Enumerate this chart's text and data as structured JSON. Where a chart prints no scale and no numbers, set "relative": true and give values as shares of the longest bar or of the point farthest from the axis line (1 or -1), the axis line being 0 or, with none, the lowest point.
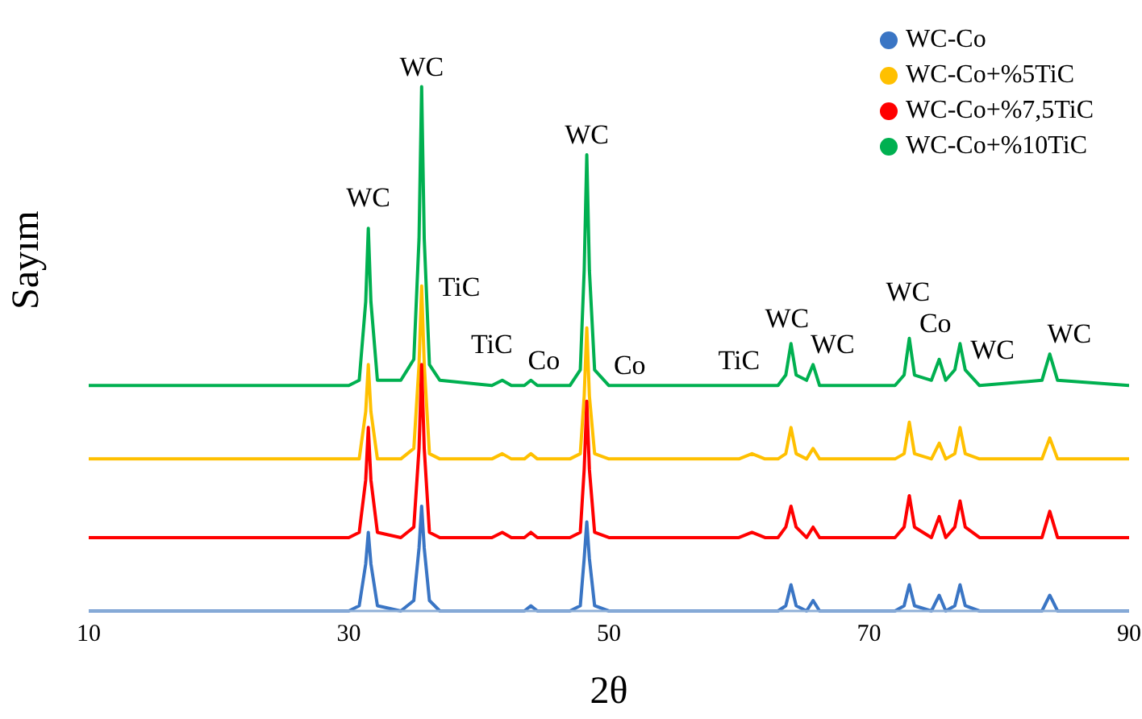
{
  "chart_data": {
    "type": "line",
    "relative": true,
    "xlabel": "2θ",
    "ylabel": "Sayım",
    "xlim": [
      10,
      90
    ],
    "xticks": [
      10,
      30,
      50,
      70,
      90
    ],
    "legend": "top right",
    "marker": "none",
    "x": [
      10,
      30,
      30.8,
      31.3,
      31.5,
      31.7,
      32.2,
      34,
      35,
      35.4,
      35.6,
      35.8,
      36.2,
      37,
      41,
      41.8,
      42.5,
      43.5,
      44,
      44.5,
      47,
      47.8,
      48.1,
      48.3,
      48.5,
      48.9,
      50,
      51.5,
      60,
      61,
      62,
      63,
      63.6,
      64,
      64.4,
      65.2,
      65.7,
      66.2,
      72,
      72.7,
      73.1,
      73.5,
      74.8,
      75.4,
      75.9,
      76.6,
      77,
      77.4,
      78.5,
      83.3,
      83.9,
      84.5,
      90
    ],
    "series": [
      {
        "name": "WC-Co",
        "color": "#3a75c4",
        "values": [
          0,
          0,
          0.01,
          0.09,
          0.15,
          0.09,
          0.01,
          0,
          0.02,
          0.12,
          0.2,
          0.12,
          0.02,
          0,
          0,
          0,
          0,
          0,
          0.01,
          0,
          0,
          0.01,
          0.1,
          0.17,
          0.1,
          0.01,
          0,
          0,
          0,
          0,
          0,
          0,
          0.01,
          0.05,
          0.01,
          0,
          0.02,
          0,
          0,
          0.01,
          0.05,
          0.01,
          0,
          0.03,
          0,
          0.01,
          0.05,
          0.01,
          0,
          0,
          0.03,
          0,
          0
        ]
      },
      {
        "name": "WC-Co+%5TiC",
        "color": "#ffc000",
        "values": [
          0.29,
          0.29,
          0.29,
          0.38,
          0.47,
          0.38,
          0.29,
          0.29,
          0.31,
          0.47,
          0.62,
          0.47,
          0.3,
          0.29,
          0.29,
          0.3,
          0.29,
          0.29,
          0.3,
          0.29,
          0.29,
          0.3,
          0.41,
          0.54,
          0.41,
          0.3,
          0.29,
          0.29,
          0.29,
          0.3,
          0.29,
          0.29,
          0.3,
          0.35,
          0.3,
          0.29,
          0.31,
          0.29,
          0.29,
          0.3,
          0.36,
          0.3,
          0.29,
          0.32,
          0.29,
          0.3,
          0.35,
          0.3,
          0.29,
          0.29,
          0.33,
          0.29,
          0.29
        ]
      },
      {
        "name": "WC-Co+%7,5TiC",
        "color": "#ff0000",
        "values": [
          0.14,
          0.14,
          0.15,
          0.25,
          0.35,
          0.25,
          0.15,
          0.14,
          0.16,
          0.31,
          0.47,
          0.31,
          0.15,
          0.14,
          0.14,
          0.15,
          0.14,
          0.14,
          0.15,
          0.14,
          0.14,
          0.15,
          0.27,
          0.4,
          0.27,
          0.15,
          0.14,
          0.14,
          0.14,
          0.15,
          0.14,
          0.14,
          0.16,
          0.2,
          0.16,
          0.14,
          0.16,
          0.14,
          0.14,
          0.16,
          0.22,
          0.16,
          0.14,
          0.18,
          0.14,
          0.16,
          0.21,
          0.16,
          0.14,
          0.14,
          0.19,
          0.14,
          0.14
        ]
      },
      {
        "name": "WC-Co+%10TiC",
        "color": "#00b050",
        "values": [
          0.43,
          0.43,
          0.44,
          0.59,
          0.73,
          0.59,
          0.44,
          0.44,
          0.48,
          0.71,
          1,
          0.71,
          0.47,
          0.44,
          0.43,
          0.44,
          0.43,
          0.43,
          0.44,
          0.43,
          0.43,
          0.46,
          0.65,
          0.87,
          0.65,
          0.46,
          0.43,
          0.43,
          0.43,
          0.43,
          0.43,
          0.43,
          0.45,
          0.51,
          0.45,
          0.44,
          0.47,
          0.43,
          0.43,
          0.45,
          0.52,
          0.45,
          0.44,
          0.48,
          0.44,
          0.46,
          0.51,
          0.46,
          0.43,
          0.44,
          0.49,
          0.44,
          0.43
        ]
      }
    ],
    "annotations": [
      "WC",
      "WC",
      "TiC",
      "TiC",
      "Co",
      "WC",
      "Co",
      "TiC",
      "WC",
      "WC",
      "WC",
      "Co",
      "WC",
      "WC"
    ]
  }
}
